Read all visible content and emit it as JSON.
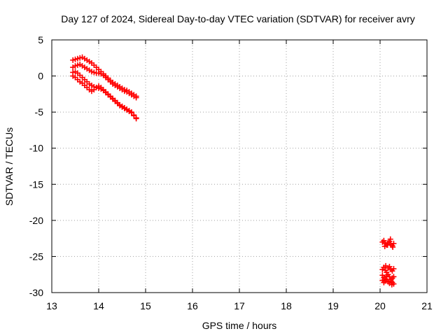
{
  "chart_data": {
    "type": "scatter",
    "title": "Day 127 of 2024, Sidereal Day-to-day VTEC variation (SDTVAR) for receiver avry",
    "xlabel": "GPS time / hours",
    "ylabel": "SDTVAR / TECUs",
    "xlim": [
      13,
      21
    ],
    "ylim": [
      -30,
      5
    ],
    "xticks": [
      13,
      14,
      15,
      16,
      17,
      18,
      19,
      20,
      21
    ],
    "yticks": [
      5,
      0,
      -5,
      -10,
      -15,
      -20,
      -25,
      -30
    ],
    "xtick_labels": [
      "13",
      "14",
      "15",
      "16",
      "17",
      "18",
      "19",
      "20",
      "21"
    ],
    "ytick_labels": [
      "5",
      "0",
      "-5",
      "-10",
      "-15",
      "-20",
      "-25",
      "-30"
    ],
    "grid": true,
    "marker": "plus",
    "color": "#ff0000",
    "series": [
      {
        "x": [
          13.45,
          13.5,
          13.55,
          13.6,
          13.65,
          13.7,
          13.75,
          13.8,
          13.85,
          13.9,
          13.95,
          14.0,
          14.05,
          14.1,
          14.15,
          14.2,
          14.25,
          14.3,
          14.35,
          14.4,
          14.45,
          14.5,
          14.55,
          14.6,
          14.65,
          14.7,
          14.75,
          14.8,
          13.45,
          13.5,
          13.55,
          13.6,
          13.65,
          13.7,
          13.75,
          13.8,
          13.85,
          13.9,
          13.95,
          14.0,
          14.05,
          14.1,
          14.15,
          14.2,
          14.25,
          14.3,
          14.35,
          14.4,
          14.45,
          14.5,
          14.55,
          14.6,
          14.65,
          14.7,
          14.75,
          14.8,
          13.45,
          13.5,
          13.55,
          13.6,
          13.65,
          13.7,
          13.75,
          13.8,
          13.85,
          13.9,
          13.95,
          14.0,
          14.05,
          14.1,
          14.15,
          14.2,
          14.25,
          14.3,
          14.35,
          14.4,
          14.45,
          14.5,
          14.55,
          14.6,
          14.65,
          14.7,
          14.75,
          14.8,
          13.45,
          13.5,
          13.55,
          13.6,
          13.65,
          13.7,
          13.75,
          13.8,
          13.85,
          13.9,
          13.95,
          14.0,
          14.05,
          14.1,
          14.15,
          14.2,
          14.25,
          14.3,
          14.35,
          14.4,
          14.45,
          14.5,
          14.55,
          14.6,
          14.65,
          14.7,
          14.75,
          14.8,
          20.05,
          20.08,
          20.11,
          20.14,
          20.17,
          20.2,
          20.23,
          20.26,
          20.29,
          20.05,
          20.08,
          20.11,
          20.14,
          20.17,
          20.2,
          20.23,
          20.26,
          20.29,
          20.05,
          20.08,
          20.11,
          20.14,
          20.17,
          20.2,
          20.23,
          20.26,
          20.29,
          20.05,
          20.08,
          20.11,
          20.14,
          20.17,
          20.2,
          20.23,
          20.26,
          20.29,
          20.1,
          20.16,
          20.22,
          20.27,
          20.12,
          20.25
        ],
        "y": [
          2.2,
          2.3,
          2.4,
          2.5,
          2.6,
          2.4,
          2.2,
          2.0,
          1.8,
          1.5,
          1.2,
          0.9,
          0.6,
          0.3,
          0.0,
          -0.3,
          -0.6,
          -0.9,
          -1.1,
          -1.3,
          -1.5,
          -1.7,
          -1.9,
          -2.0,
          -2.2,
          -2.4,
          -2.6,
          -2.8,
          1.2,
          1.4,
          1.5,
          1.6,
          1.4,
          1.2,
          1.0,
          0.8,
          0.6,
          0.5,
          0.4,
          0.4,
          0.3,
          0.1,
          -0.2,
          -0.5,
          -0.8,
          -1.1,
          -1.3,
          -1.5,
          -1.7,
          -1.9,
          -2.1,
          -2.2,
          -2.4,
          -2.6,
          -2.8,
          -3.0,
          0.5,
          0.6,
          0.4,
          0.1,
          -0.2,
          -0.5,
          -0.8,
          -1.1,
          -1.3,
          -1.5,
          -1.6,
          -1.7,
          -1.8,
          -2.0,
          -2.3,
          -2.6,
          -2.9,
          -3.2,
          -3.5,
          -3.8,
          -4.1,
          -4.3,
          -4.5,
          -4.7,
          -4.9,
          -5.1,
          -5.5,
          -5.9,
          0.0,
          -0.2,
          -0.5,
          -0.8,
          -1.0,
          -1.3,
          -1.6,
          -1.9,
          -2.1,
          -1.9,
          -1.6,
          -1.4,
          -1.6,
          -1.9,
          -2.2,
          -2.5,
          -2.8,
          -3.1,
          -3.4,
          -3.7,
          -4.0,
          -4.2,
          -4.4,
          -4.6,
          -4.8,
          -5.0,
          -5.4,
          -5.8,
          -23.0,
          -22.8,
          -23.2,
          -23.4,
          -23.1,
          -22.9,
          -23.3,
          -23.5,
          -23.2,
          -26.8,
          -26.5,
          -26.9,
          -27.2,
          -26.6,
          -26.4,
          -26.8,
          -27.0,
          -26.7,
          -27.6,
          -27.9,
          -28.1,
          -27.7,
          -27.5,
          -27.8,
          -28.2,
          -28.0,
          -27.8,
          -28.3,
          -28.6,
          -28.4,
          -28.2,
          -28.5,
          -28.7,
          -28.4,
          -28.6,
          -28.8,
          -23.6,
          -23.4,
          -22.6,
          -23.7,
          -26.3,
          -28.9
        ]
      }
    ]
  }
}
